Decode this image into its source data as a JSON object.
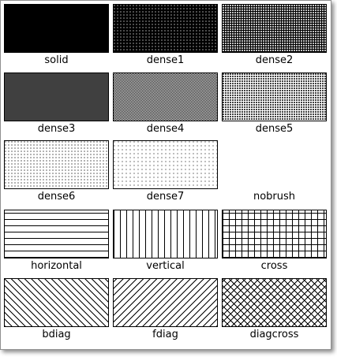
{
  "brushes": [
    {
      "label": "solid",
      "pattern": "solid"
    },
    {
      "label": "dense1",
      "pattern": "dense1"
    },
    {
      "label": "dense2",
      "pattern": "dense2"
    },
    {
      "label": "dense3",
      "pattern": "dense3"
    },
    {
      "label": "dense4",
      "pattern": "dense4"
    },
    {
      "label": "dense5",
      "pattern": "dense5"
    },
    {
      "label": "dense6",
      "pattern": "dense6"
    },
    {
      "label": "dense7",
      "pattern": "dense7"
    },
    {
      "label": "nobrush",
      "pattern": "nobrush"
    },
    {
      "label": "horizontal",
      "pattern": "horizontal"
    },
    {
      "label": "vertical",
      "pattern": "vertical"
    },
    {
      "label": "cross",
      "pattern": "cross"
    },
    {
      "label": "bdiag",
      "pattern": "bdiag"
    },
    {
      "label": "fdiag",
      "pattern": "fdiag"
    },
    {
      "label": "diagcross",
      "pattern": "diagcross"
    }
  ],
  "colors": {
    "foreground": "#000000",
    "background": "#ffffff",
    "window_border": "#8f8f8f"
  }
}
